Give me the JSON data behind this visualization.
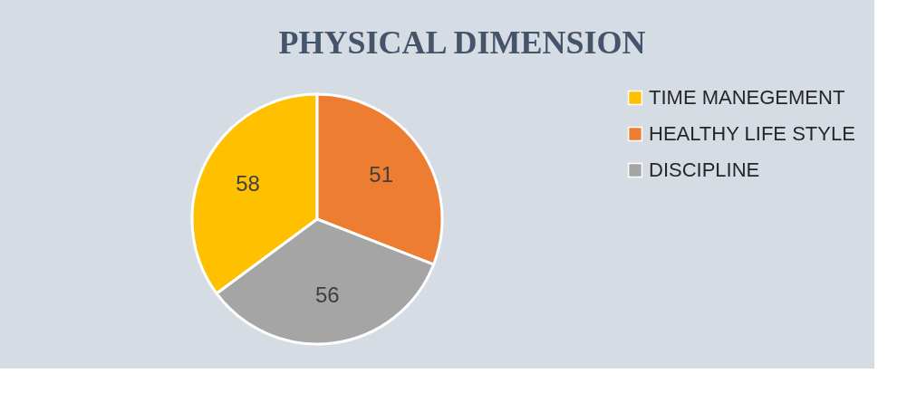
{
  "chart_data": {
    "type": "pie",
    "title": "PHYSICAL DIMENSION",
    "categories": [
      "TIME MANEGEMENT",
      "HEALTHY LIFE STYLE",
      "DISCIPLINE"
    ],
    "values": [
      58,
      51,
      56
    ],
    "colors": [
      "#ffc000",
      "#ed7d31",
      "#a5a5a5"
    ],
    "data_labels": true,
    "legend": "right"
  }
}
